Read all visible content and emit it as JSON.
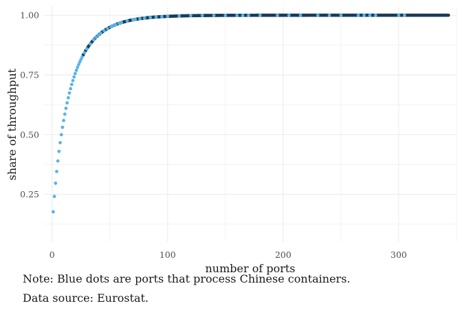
{
  "chart_data": {
    "type": "scatter",
    "xlabel": "number of ports",
    "ylabel": "share of throughput",
    "xlim": [
      -7,
      350
    ],
    "ylim": [
      0.05,
      1.035
    ],
    "x_ticks": [
      0,
      100,
      200,
      300
    ],
    "x_tick_labels": [
      "0",
      "100",
      "200",
      "300"
    ],
    "y_ticks": [
      0.25,
      0.5,
      0.75,
      1.0
    ],
    "y_tick_labels": [
      "0.25",
      "0.50",
      "0.75",
      "1.00"
    ],
    "grid": true,
    "curve": {
      "n_ports": 343,
      "first_share": 0.09,
      "shape": "concave, saturating near 1.00 above ~150 ports"
    },
    "highlight": {
      "description": "ports that process Chinese containers",
      "x": [
        1,
        2,
        3,
        4,
        5,
        6,
        7,
        8,
        9,
        10,
        11,
        12,
        13,
        14,
        15,
        16,
        17,
        18,
        19,
        20,
        21,
        22,
        23,
        24,
        25,
        26,
        28,
        30,
        33,
        36,
        38,
        40,
        42,
        45,
        48,
        51,
        53,
        55,
        58,
        60,
        65,
        70,
        72,
        76,
        80,
        85,
        90,
        95,
        100,
        110,
        120,
        130,
        140,
        150,
        160,
        165,
        170,
        180,
        195,
        205,
        215,
        230,
        240,
        250,
        265,
        270,
        275,
        280,
        300,
        305
      ]
    },
    "colors": {
      "highlight": "#56b4e9",
      "other": "#1b3a55",
      "grid": "#ebebeb"
    }
  },
  "notes": {
    "line1": "Note: Blue dots are ports that process Chinese containers.",
    "line2": "Data source: Eurostat."
  }
}
